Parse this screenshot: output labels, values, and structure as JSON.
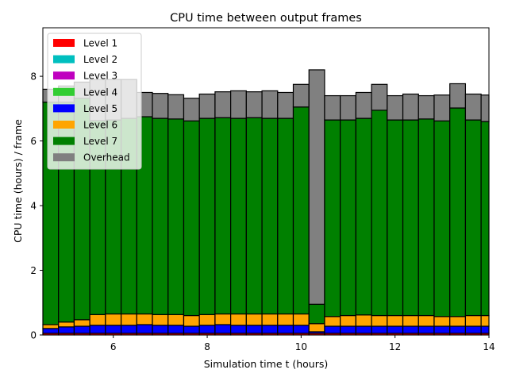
{
  "chart_data": {
    "type": "bar",
    "stacked": true,
    "title": "CPU time between output frames",
    "xlabel": "Simulation time t (hours)",
    "ylabel": "CPU time (hours) / frame",
    "xlim": [
      4.5,
      14
    ],
    "ylim": [
      0,
      9.5
    ],
    "x_ticks": [
      6,
      8,
      10,
      12,
      14
    ],
    "y_ticks": [
      0,
      2,
      4,
      6,
      8
    ],
    "bar_width": 0.333,
    "legend_position": "upper-left",
    "x_starts": [
      4.5,
      4.833,
      5.167,
      5.5,
      5.833,
      6.167,
      6.5,
      6.833,
      7.167,
      7.5,
      7.833,
      8.167,
      8.5,
      8.833,
      9.167,
      9.5,
      9.833,
      10.167,
      10.5,
      10.833,
      11.167,
      11.5,
      11.833,
      12.167,
      12.5,
      12.833,
      13.167,
      13.5,
      13.833
    ],
    "series": [
      {
        "name": "Level 1",
        "color": "#ff0000",
        "values": [
          0.05,
          0.05,
          0.05,
          0.05,
          0.05,
          0.05,
          0.05,
          0.05,
          0.05,
          0.05,
          0.05,
          0.05,
          0.05,
          0.05,
          0.05,
          0.05,
          0.05,
          0.05,
          0.05,
          0.05,
          0.05,
          0.05,
          0.05,
          0.05,
          0.05,
          0.05,
          0.05,
          0.05,
          0.05
        ]
      },
      {
        "name": "Level 2",
        "color": "#00bfbf",
        "values": [
          0,
          0,
          0,
          0,
          0,
          0,
          0,
          0,
          0,
          0,
          0,
          0,
          0,
          0,
          0,
          0,
          0,
          0,
          0,
          0,
          0,
          0,
          0,
          0,
          0,
          0,
          0,
          0,
          0
        ]
      },
      {
        "name": "Level 3",
        "color": "#bf00bf",
        "values": [
          0,
          0,
          0,
          0,
          0,
          0,
          0,
          0,
          0,
          0,
          0,
          0,
          0,
          0,
          0,
          0,
          0,
          0,
          0,
          0,
          0,
          0,
          0,
          0,
          0,
          0,
          0,
          0,
          0
        ]
      },
      {
        "name": "Level 4",
        "color": "#32cd32",
        "values": [
          0,
          0,
          0,
          0,
          0,
          0,
          0,
          0,
          0,
          0,
          0,
          0,
          0,
          0,
          0,
          0,
          0,
          0,
          0,
          0,
          0,
          0,
          0,
          0,
          0,
          0,
          0,
          0,
          0
        ]
      },
      {
        "name": "Level 5",
        "color": "#0000ff",
        "values": [
          0.15,
          0.2,
          0.22,
          0.25,
          0.25,
          0.25,
          0.27,
          0.25,
          0.25,
          0.22,
          0.25,
          0.27,
          0.25,
          0.25,
          0.25,
          0.25,
          0.25,
          0.05,
          0.22,
          0.22,
          0.22,
          0.22,
          0.22,
          0.22,
          0.22,
          0.22,
          0.22,
          0.22,
          0.22
        ]
      },
      {
        "name": "Level 6",
        "color": "#ffa500",
        "values": [
          0.12,
          0.15,
          0.2,
          0.33,
          0.35,
          0.35,
          0.33,
          0.33,
          0.33,
          0.33,
          0.33,
          0.33,
          0.35,
          0.35,
          0.35,
          0.35,
          0.35,
          0.25,
          0.3,
          0.33,
          0.35,
          0.33,
          0.33,
          0.33,
          0.33,
          0.3,
          0.3,
          0.33,
          0.33
        ]
      },
      {
        "name": "Level 7",
        "color": "#008000",
        "values": [
          6.88,
          6.8,
          6.85,
          6.0,
          6.0,
          6.05,
          6.1,
          6.07,
          6.05,
          6.02,
          6.07,
          6.07,
          6.05,
          6.07,
          6.05,
          6.05,
          6.4,
          0.6,
          6.08,
          6.05,
          6.08,
          6.35,
          6.05,
          6.05,
          6.08,
          6.05,
          6.45,
          6.05,
          6.0
        ]
      },
      {
        "name": "Overhead",
        "color": "#808080",
        "values": [
          0.4,
          0.5,
          0.5,
          1.27,
          1.25,
          1.2,
          0.75,
          0.77,
          0.75,
          0.7,
          0.75,
          0.8,
          0.85,
          0.8,
          0.85,
          0.8,
          0.7,
          7.25,
          0.75,
          0.75,
          0.8,
          0.8,
          0.75,
          0.8,
          0.72,
          0.8,
          0.75,
          0.8,
          0.82
        ]
      }
    ]
  }
}
